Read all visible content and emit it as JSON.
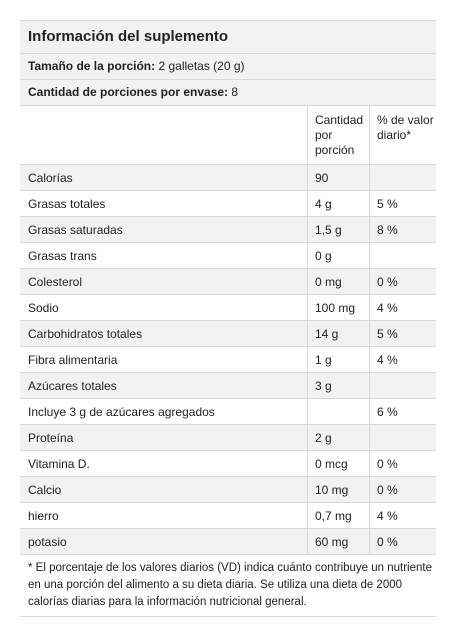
{
  "title": "Información del suplemento",
  "serving": {
    "label": "Tamaño de la porción:",
    "value": "2 galletas (20 g)"
  },
  "servings_per_container": {
    "label": "Cantidad de porciones por envase:",
    "value": "8"
  },
  "columns": {
    "amount": "Cantidad\npor\nporción",
    "dv": "% de valor\ndiario*"
  },
  "rows": [
    {
      "name": "Calorías",
      "amount": "90",
      "dv": ""
    },
    {
      "name": "Grasas totales",
      "amount": "4 g",
      "dv": "5 %"
    },
    {
      "name": "Grasas saturadas",
      "amount": "1,5 g",
      "dv": "8 %"
    },
    {
      "name": "Grasas trans",
      "amount": "0 g",
      "dv": ""
    },
    {
      "name": "Colesterol",
      "amount": "0 mg",
      "dv": "0 %"
    },
    {
      "name": "Sodio",
      "amount": "100 mg",
      "dv": "4 %"
    },
    {
      "name": "Carbohidratos totales",
      "amount": "14 g",
      "dv": "5 %"
    },
    {
      "name": "Fibra alimentaria",
      "amount": "1 g",
      "dv": "4 %"
    },
    {
      "name": "Azúcares totales",
      "amount": "3 g",
      "dv": ""
    },
    {
      "name": "Incluye 3 g de azúcares agregados",
      "amount": "",
      "dv": "6 %"
    },
    {
      "name": "Proteína",
      "amount": "2 g",
      "dv": ""
    },
    {
      "name": "Vitamina D.",
      "amount": "0 mcg",
      "dv": "0 %"
    },
    {
      "name": "Calcio",
      "amount": "10 mg",
      "dv": "0 %"
    },
    {
      "name": "hierro",
      "amount": "0,7 mg",
      "dv": "4 %"
    },
    {
      "name": "potasio",
      "amount": "60 mg",
      "dv": "0 %"
    }
  ],
  "footnote": "* El porcentaje de los valores diarios (VD) indica cuánto contribuye un nutriente en una porción del alimento a su dieta diaria. Se utiliza una dieta de 2000 calorías diarias para la información nutricional general."
}
